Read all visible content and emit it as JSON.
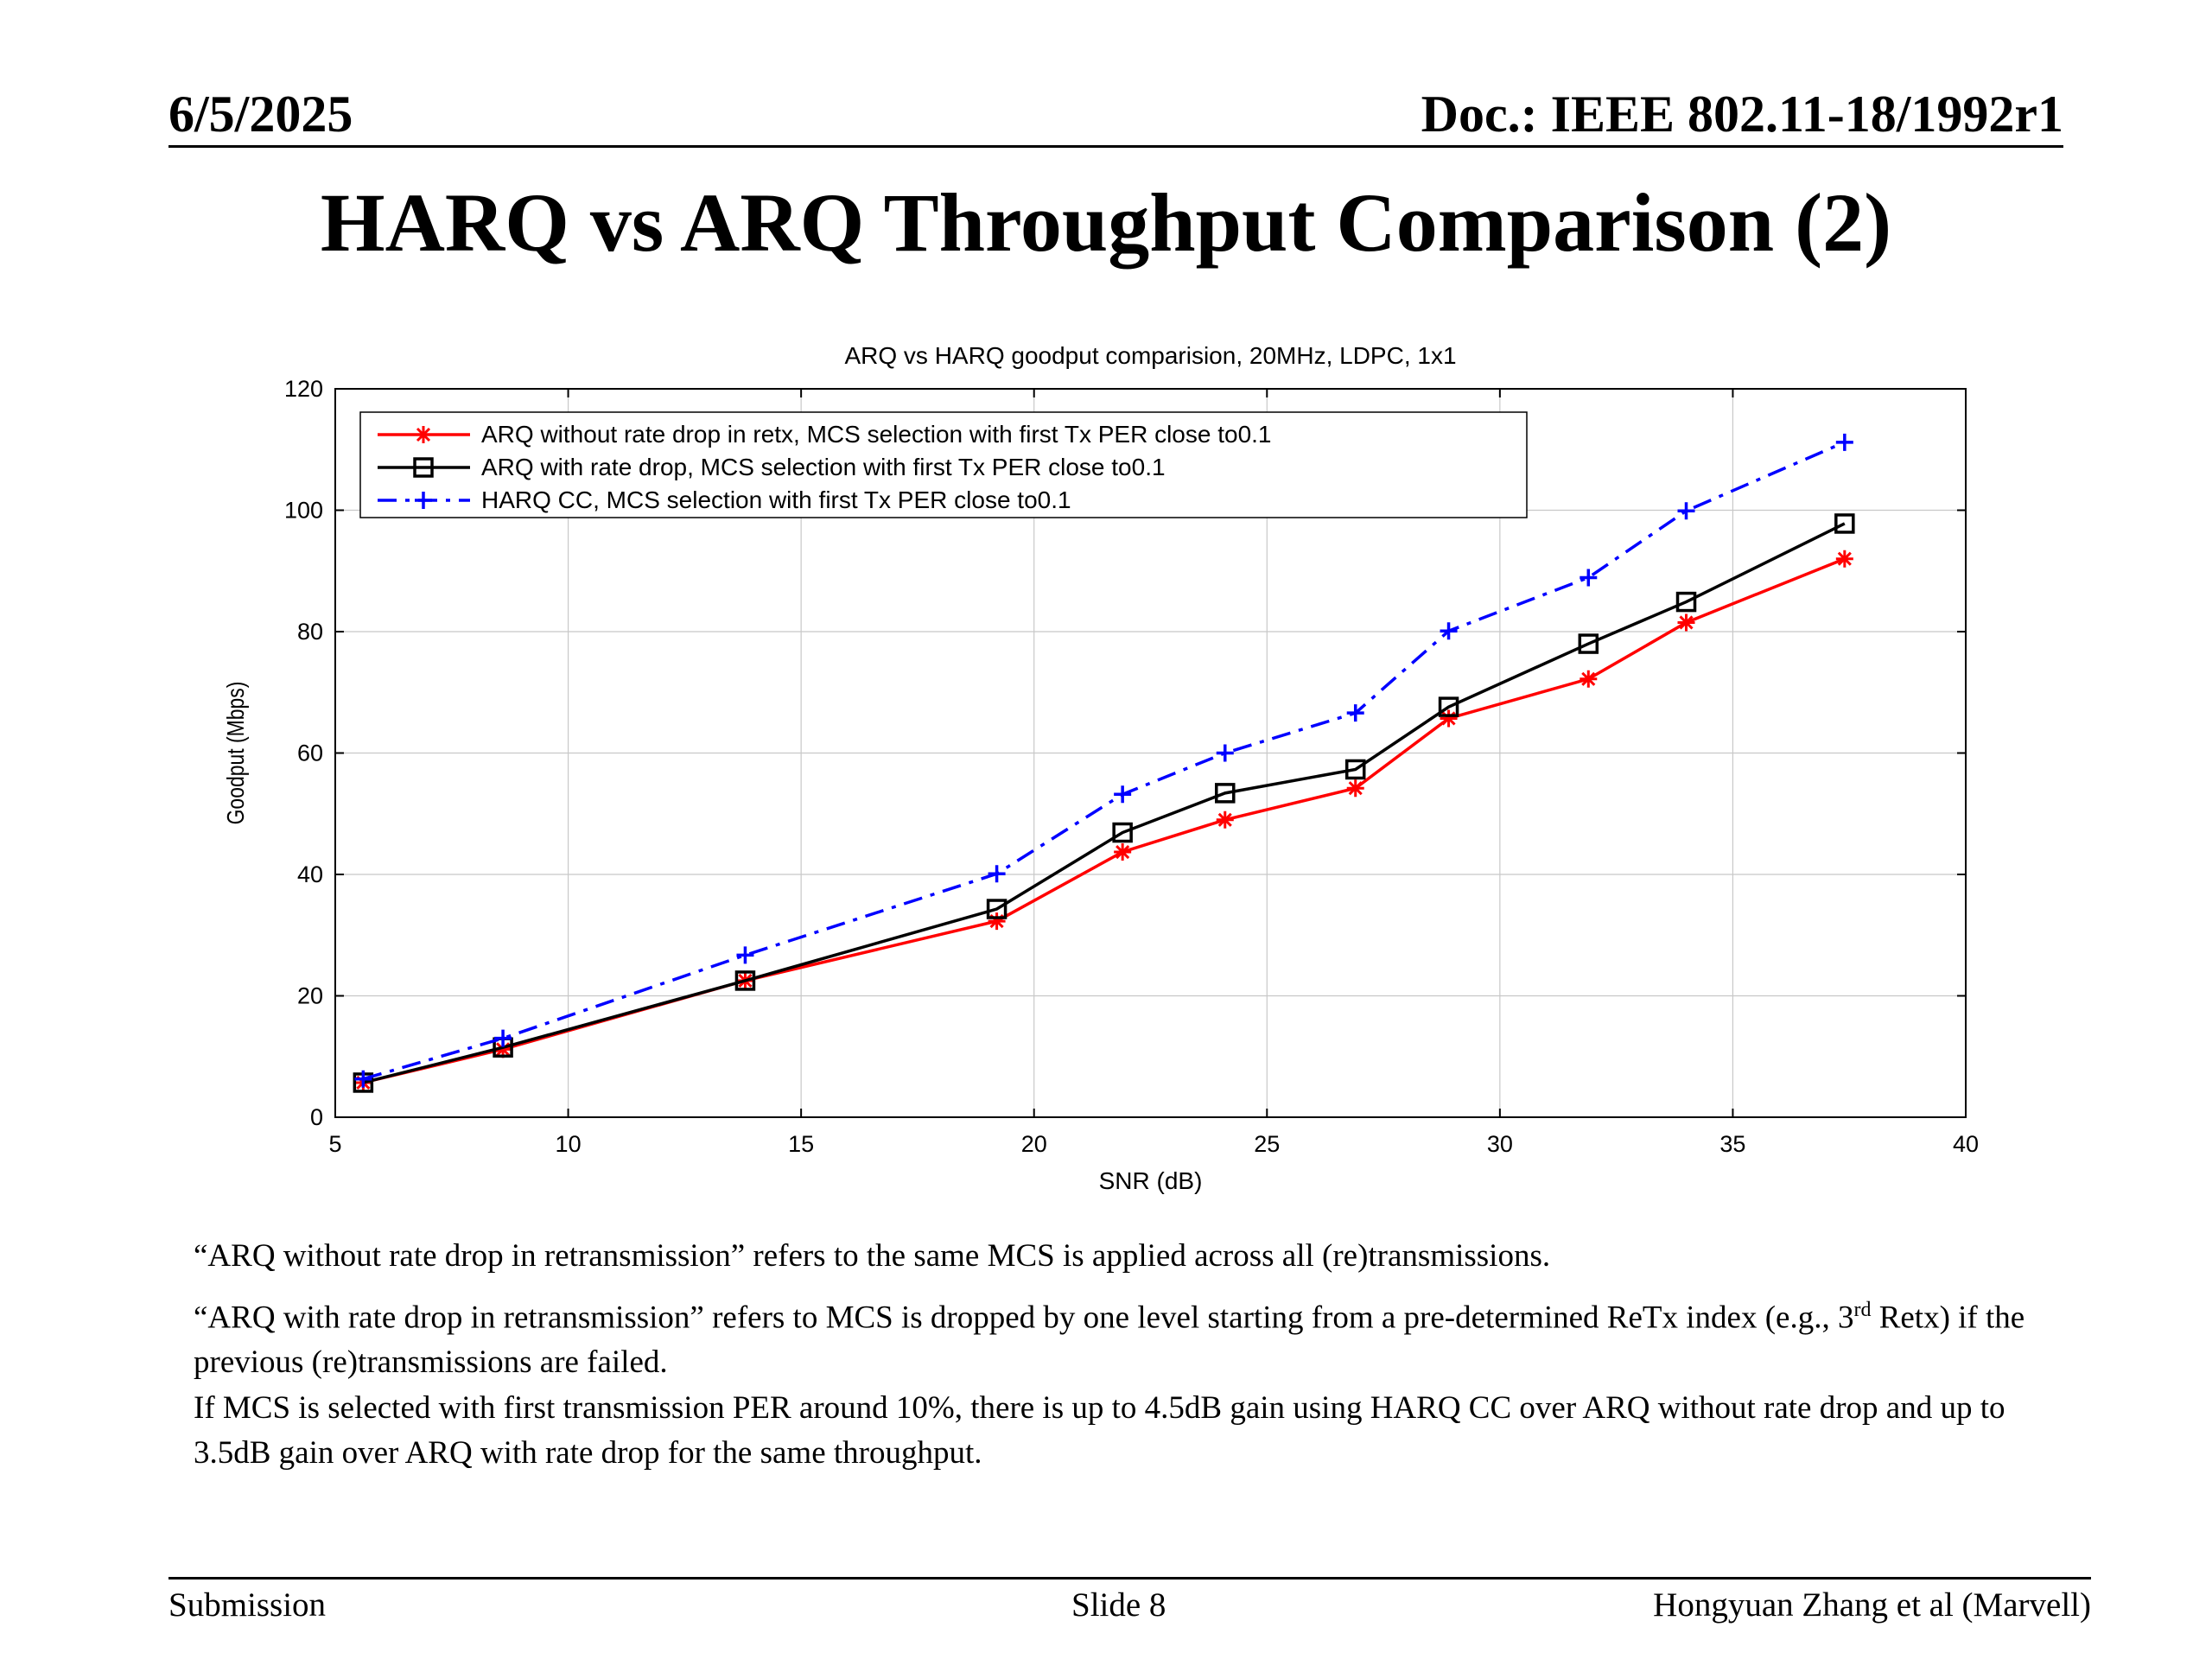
{
  "header": {
    "date": "6/5/2025",
    "doc": "Doc.: IEEE 802.11-18/1992r1"
  },
  "title": "HARQ vs ARQ Throughput Comparison (2)",
  "chart_data": {
    "type": "line",
    "title": "ARQ vs HARQ goodput comparision, 20MHz, LDPC, 1x1",
    "xlabel": "SNR (dB)",
    "ylabel": "Goodput (Mbps)",
    "xlim": [
      5,
      40
    ],
    "ylim": [
      0,
      120
    ],
    "xticks": [
      5,
      10,
      15,
      20,
      25,
      30,
      35,
      40
    ],
    "yticks": [
      0,
      20,
      40,
      60,
      80,
      100,
      120
    ],
    "grid": true,
    "legend": "top-left",
    "series": [
      {
        "name": "ARQ without rate drop in retx, MCS selection with first Tx PER close to0.1",
        "color": "#ff0000",
        "line": "solid",
        "marker": "star",
        "x": [
          5.6,
          8.6,
          13.8,
          19.2,
          21.9,
          24.1,
          26.9,
          28.9,
          31.9,
          34.0,
          37.4
        ],
        "y": [
          5.7,
          11.2,
          22.5,
          32.3,
          43.7,
          49.0,
          54.2,
          65.7,
          72.2,
          81.5,
          92.0
        ]
      },
      {
        "name": "ARQ with rate drop, MCS selection with first Tx PER close to0.1",
        "color": "#000000",
        "line": "solid",
        "marker": "square",
        "x": [
          5.6,
          8.6,
          13.8,
          19.2,
          21.9,
          24.1,
          26.9,
          28.9,
          31.9,
          34.0,
          37.4
        ],
        "y": [
          5.7,
          11.5,
          22.5,
          34.3,
          46.9,
          53.4,
          57.3,
          67.6,
          78.0,
          84.9,
          97.8
        ]
      },
      {
        "name": "HARQ CC, MCS selection with first Tx PER close to0.1",
        "color": "#0000ff",
        "line": "dashdot",
        "marker": "plus",
        "x": [
          5.6,
          8.6,
          13.8,
          19.2,
          21.9,
          24.1,
          26.9,
          28.9,
          31.9,
          34.0,
          37.4
        ],
        "y": [
          6.3,
          13.0,
          26.7,
          40.1,
          53.2,
          60.0,
          66.6,
          80.1,
          88.9,
          99.9,
          111.2
        ]
      }
    ]
  },
  "notes": {
    "n1": "“ARQ without rate drop in retransmission” refers to the same MCS is applied across all (re)transmissions.",
    "n2a": "“ARQ with rate drop in retransmission” refers to MCS is dropped by one level starting from a pre-determined ReTx index (e.g., 3",
    "n2sup": "rd",
    "n2b": " Retx) if the previous (re)transmissions are failed.",
    "n3": "If MCS is selected with first transmission PER around 10%, there is up to 4.5dB gain using HARQ CC over ARQ without rate drop and up to 3.5dB gain over ARQ with rate drop for the same throughput."
  },
  "footer": {
    "left": "Submission",
    "center": "Slide 8",
    "right": "Hongyuan Zhang et al (Marvell)"
  }
}
